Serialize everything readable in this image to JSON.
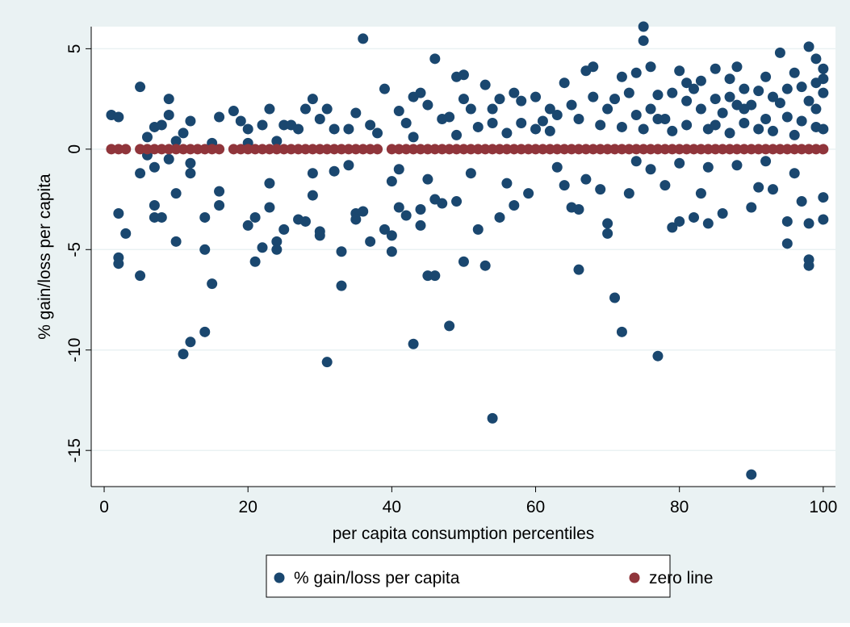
{
  "chart_data": {
    "type": "scatter",
    "xlabel": "per capita consumption percentiles",
    "ylabel": "% gain/loss per capita",
    "xlim": [
      -1.8,
      101.7
    ],
    "ylim": [
      -16.8,
      6.1
    ],
    "xticks": [
      0,
      20,
      40,
      60,
      80,
      100
    ],
    "yticks": [
      -15,
      -10,
      -5,
      0,
      5
    ],
    "grid": true,
    "legend": "bottom",
    "series": [
      {
        "name": "% gain/loss per capita",
        "color": "#1a476f",
        "x": [
          1,
          2,
          2,
          2,
          2,
          3,
          5,
          5,
          5,
          6,
          7,
          7,
          7,
          7,
          8,
          8,
          9,
          9,
          10,
          10,
          10,
          11,
          11,
          12,
          12,
          12,
          12,
          14,
          14,
          14,
          15,
          16,
          16,
          16,
          18,
          19,
          20,
          20,
          21,
          21,
          22,
          22,
          23,
          23,
          23,
          24,
          24,
          25,
          25,
          26,
          27,
          28,
          28,
          29,
          29,
          29,
          30,
          30,
          30,
          31,
          31,
          32,
          32,
          33,
          33,
          34,
          35,
          35,
          35,
          36,
          36,
          37,
          37,
          39,
          39,
          40,
          40,
          40,
          41,
          41,
          42,
          43,
          43,
          44,
          44,
          44,
          45,
          45,
          46,
          46,
          46,
          47,
          48,
          48,
          49,
          49,
          50,
          50,
          50,
          51,
          52,
          53,
          53,
          54,
          54,
          55,
          55,
          56,
          57,
          57,
          58,
          59,
          60,
          61,
          62,
          63,
          64,
          64,
          65,
          66,
          66,
          67,
          67,
          68,
          69,
          70,
          70,
          71,
          71,
          72,
          72,
          73,
          74,
          75,
          75,
          75,
          76,
          77,
          77,
          78,
          79,
          80,
          80,
          81,
          82,
          83,
          84,
          85,
          86,
          87,
          88,
          89,
          90,
          90,
          90,
          91,
          92,
          93,
          94,
          95,
          95,
          96,
          97,
          98,
          98,
          98,
          98,
          99,
          99,
          100,
          100,
          100,
          100,
          76,
          78,
          79,
          81,
          82,
          83,
          84,
          85,
          86,
          87,
          88,
          89,
          91,
          92,
          93,
          94,
          95,
          96,
          97,
          98,
          99,
          100,
          100,
          99,
          97,
          95,
          93,
          91,
          89,
          87,
          85,
          83,
          81,
          79,
          77,
          74,
          73,
          72,
          70,
          69,
          68,
          66,
          65,
          63,
          62,
          60,
          58,
          56,
          54,
          52,
          51,
          49,
          47,
          45,
          43,
          42,
          41,
          38,
          34,
          27,
          24,
          20,
          15,
          9,
          6,
          88,
          92,
          96,
          84,
          80,
          76,
          74
        ],
        "values": [
          1.7,
          1.6,
          -3.2,
          -5.4,
          -5.7,
          -4.2,
          3.1,
          -1.2,
          -6.3,
          0.6,
          1.1,
          -0.9,
          -2.8,
          -3.4,
          -3.4,
          1.2,
          2.5,
          1.7,
          -2.2,
          -4.6,
          0.4,
          -10.2,
          0.8,
          -9.6,
          1.4,
          -1.2,
          -0.7,
          -5,
          -9.1,
          -3.4,
          -6.7,
          1.6,
          -2.1,
          -2.8,
          1.9,
          1.4,
          -3.8,
          1,
          -5.6,
          -3.4,
          -4.9,
          1.2,
          2,
          -1.7,
          -2.9,
          -4.6,
          -5,
          1.2,
          -4,
          1.2,
          -3.5,
          2,
          -3.6,
          2.5,
          -1.2,
          -2.3,
          -4.1,
          -4.3,
          1.5,
          -10.6,
          2,
          1,
          -1.1,
          -5.1,
          -6.8,
          -0.8,
          1.8,
          -3.2,
          -3.5,
          5.5,
          -3.1,
          -4.6,
          1.2,
          3,
          -4,
          -5.1,
          -4.3,
          -1.6,
          1.9,
          -2.9,
          -3.3,
          -9.7,
          2.6,
          2.8,
          -3,
          -3.8,
          -6.3,
          -1.5,
          4.5,
          -6.3,
          -2.5,
          -2.7,
          -8.8,
          1.6,
          3.6,
          -2.6,
          3.7,
          -5.6,
          2.5,
          2,
          -4,
          -5.8,
          3.2,
          -13.4,
          1.3,
          -3.4,
          2.5,
          -1.7,
          -2.8,
          2.8,
          1.3,
          -2.2,
          2.6,
          1.4,
          2,
          -0.9,
          3.3,
          -1.8,
          -2.9,
          -6,
          -3,
          3.9,
          -1.5,
          4.1,
          -2,
          -3.7,
          -4.2,
          -7.4,
          2.5,
          -9.1,
          3.6,
          -2.2,
          3.8,
          6.1,
          5.4,
          1,
          4.1,
          -10.3,
          2.7,
          -1.8,
          -3.9,
          3.9,
          -3.6,
          2.4,
          -3.4,
          -2.2,
          -3.7,
          4,
          -3.2,
          2.6,
          4.1,
          3,
          -16.2,
          -2.9,
          2.2,
          -1.9,
          3.6,
          -2,
          4.8,
          -4.7,
          -3.6,
          3.8,
          -2.6,
          5.1,
          -5.5,
          -5.8,
          -3.7,
          4.5,
          2,
          4,
          -3.5,
          -2.4,
          1,
          2,
          1.5,
          2.8,
          1.2,
          3,
          2,
          1,
          2.5,
          1.8,
          0.8,
          2.2,
          1.3,
          2.9,
          1.5,
          0.9,
          2.3,
          1.6,
          0.7,
          3.1,
          2.4,
          1.1,
          2.8,
          3.5,
          3.3,
          1.4,
          3,
          2.6,
          1,
          2,
          3.5,
          1.2,
          3.4,
          3.3,
          0.9,
          1.5,
          1.7,
          2.8,
          1.1,
          2,
          1.2,
          2.6,
          1.5,
          2.2,
          1.7,
          0.9,
          1,
          2.4,
          0.8,
          2,
          1.1,
          -1.2,
          0.7,
          1.5,
          2.2,
          0.6,
          1.3,
          -1,
          0.8,
          1,
          1,
          0.4,
          0.3,
          0.3,
          -0.5,
          -0.3,
          -0.8,
          -0.6,
          -1.2,
          -0.9,
          -0.7,
          -1,
          -0.6
        ]
      },
      {
        "name": "zero line",
        "color": "#90353b",
        "x": [
          1,
          2,
          3,
          5,
          6,
          7,
          8,
          9,
          10,
          11,
          12,
          13,
          14,
          15,
          16,
          18,
          19,
          20,
          21,
          22,
          23,
          24,
          25,
          26,
          27,
          28,
          29,
          30,
          31,
          32,
          33,
          34,
          35,
          36,
          37,
          38,
          40,
          41,
          42,
          43,
          44,
          45,
          46,
          47,
          48,
          49,
          50,
          51,
          52,
          53,
          54,
          55,
          56,
          57,
          58,
          59,
          60,
          61,
          62,
          63,
          64,
          65,
          66,
          67,
          68,
          69,
          70,
          71,
          72,
          73,
          74,
          75,
          76,
          77,
          78,
          79,
          80,
          81,
          82,
          83,
          84,
          85,
          86,
          87,
          88,
          89,
          90,
          91,
          92,
          93,
          94,
          95,
          96,
          97,
          98,
          99,
          100
        ],
        "values": [
          0,
          0,
          0,
          0,
          0,
          0,
          0,
          0,
          0,
          0,
          0,
          0,
          0,
          0,
          0,
          0,
          0,
          0,
          0,
          0,
          0,
          0,
          0,
          0,
          0,
          0,
          0,
          0,
          0,
          0,
          0,
          0,
          0,
          0,
          0,
          0,
          0,
          0,
          0,
          0,
          0,
          0,
          0,
          0,
          0,
          0,
          0,
          0,
          0,
          0,
          0,
          0,
          0,
          0,
          0,
          0,
          0,
          0,
          0,
          0,
          0,
          0,
          0,
          0,
          0,
          0,
          0,
          0,
          0,
          0,
          0,
          0,
          0,
          0,
          0,
          0,
          0,
          0,
          0,
          0,
          0,
          0,
          0,
          0,
          0,
          0,
          0,
          0,
          0,
          0,
          0,
          0,
          0,
          0,
          0,
          0,
          0
        ]
      }
    ]
  }
}
